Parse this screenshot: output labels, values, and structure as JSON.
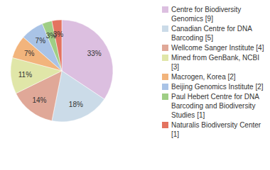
{
  "chart_data": {
    "type": "pie",
    "categories": [
      "Centre for Biodiversity Genomics [9]",
      "Canadian Centre for DNA Barcoding [5]",
      "Wellcome Sanger Institute [4]",
      "Mined from GenBank, NCBI [3]",
      "Macrogen, Korea [2]",
      "Beijing Genomics Institute [2]",
      "Paul Hebert Centre for DNA Barcoding and Biodiversity Studies [1]",
      "Naturalis Biodiversity Center [1]"
    ],
    "values": [
      33,
      18,
      14,
      11,
      7,
      7,
      3,
      3
    ],
    "value_labels": [
      "33%",
      "18%",
      "14%",
      "11%",
      "7%",
      "7%",
      "3%",
      "3%"
    ],
    "colors": [
      "#dcbfe0",
      "#cbdbe8",
      "#e0a898",
      "#e0e6a8",
      "#f2b47c",
      "#a9c3e6",
      "#9fce85",
      "#e3735f"
    ],
    "data_labels": true,
    "legend": "right"
  }
}
